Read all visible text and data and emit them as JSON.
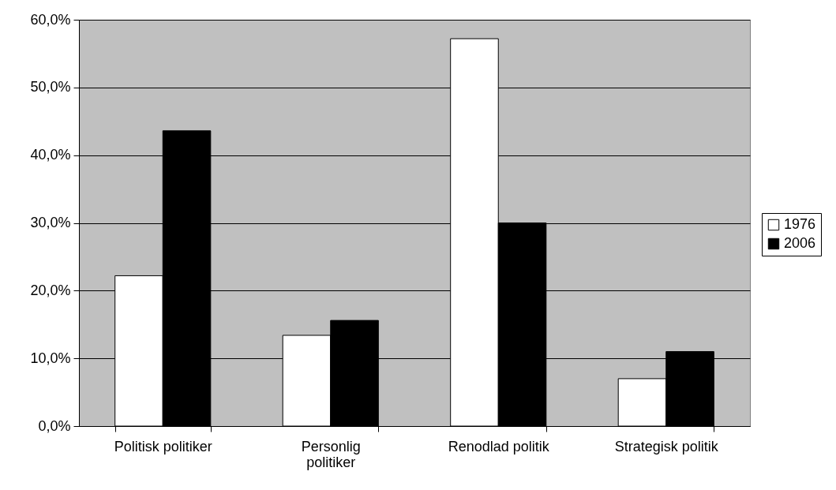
{
  "chart_data": {
    "type": "bar",
    "categories": [
      "Politisk politiker",
      "Personlig politiker",
      "Renodlad politik",
      "Strategisk politik"
    ],
    "series": [
      {
        "name": "1976",
        "color": "#ffffff",
        "values": [
          22.2,
          13.4,
          57.2,
          7.0
        ]
      },
      {
        "name": "2006",
        "color": "#000000",
        "values": [
          43.6,
          15.6,
          30.0,
          11.0
        ]
      }
    ],
    "ylim": [
      0,
      60
    ],
    "yticks": [
      {
        "value": 0,
        "label": "0,0%"
      },
      {
        "value": 10,
        "label": "10,0%"
      },
      {
        "value": 20,
        "label": "20,0%"
      },
      {
        "value": 30,
        "label": "30,0%"
      },
      {
        "value": 40,
        "label": "40,0%"
      },
      {
        "value": 50,
        "label": "50,0%"
      },
      {
        "value": 60,
        "label": "60,0%"
      }
    ],
    "grid": "y",
    "legend": "right"
  }
}
